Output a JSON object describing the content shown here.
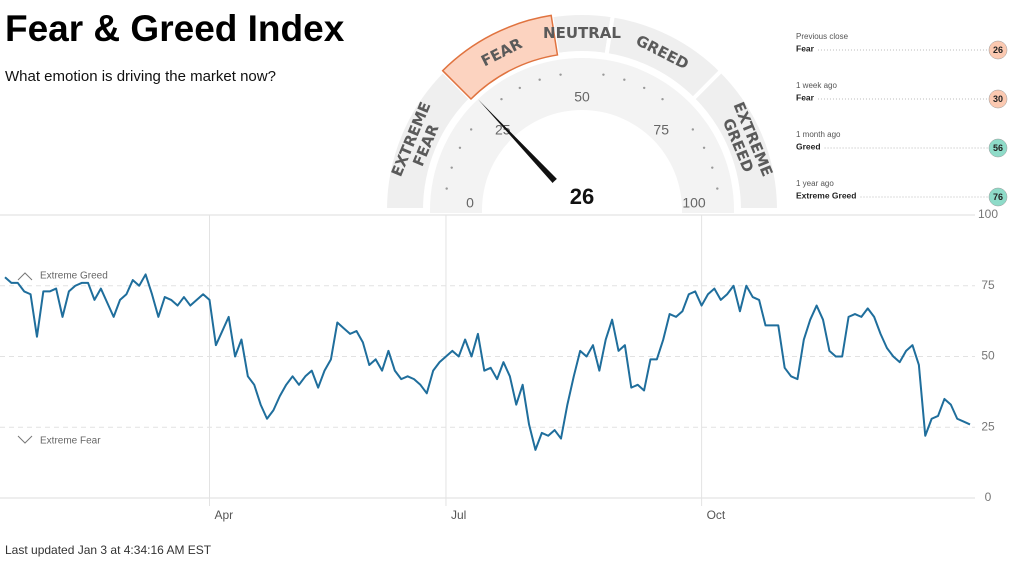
{
  "header": {
    "title": "Fear & Greed Index",
    "subtitle": "What emotion is driving the market now?"
  },
  "gauge": {
    "value": 26,
    "min": 0,
    "max": 100,
    "ticks": [
      0,
      25,
      50,
      75,
      100
    ],
    "segments": [
      {
        "lines": [
          "EXTREME",
          "FEAR"
        ],
        "from": 0,
        "to": 25
      },
      {
        "lines": [
          "FEAR"
        ],
        "from": 25,
        "to": 45
      },
      {
        "lines": [
          "NEUTRAL"
        ],
        "from": 45,
        "to": 55
      },
      {
        "lines": [
          "GREED"
        ],
        "from": 55,
        "to": 75
      },
      {
        "lines": [
          "EXTREME",
          "GREED"
        ],
        "from": 75,
        "to": 100
      }
    ]
  },
  "history": [
    {
      "label": "Previous close",
      "rating": "Fear",
      "value": 26,
      "color": "#fbc9b1"
    },
    {
      "label": "1 week ago",
      "rating": "Fear",
      "value": 30,
      "color": "#fbc9b1"
    },
    {
      "label": "1 month ago",
      "rating": "Greed",
      "value": 56,
      "color": "#8edbc8"
    },
    {
      "label": "1 year ago",
      "rating": "Extreme Greed",
      "value": 76,
      "color": "#8edbc8"
    }
  ],
  "chart_data": {
    "type": "line",
    "color": "#1f6e9c",
    "annotations": [
      "Extreme Greed",
      "Extreme Fear"
    ],
    "values": [
      78,
      76,
      76,
      73,
      72,
      57,
      73,
      73,
      74,
      64,
      73,
      75,
      76,
      76,
      70,
      74,
      69,
      64,
      70,
      72,
      77,
      75,
      79,
      72,
      64,
      71,
      70,
      68,
      71,
      68,
      70,
      72,
      70,
      54,
      59,
      64,
      50,
      56,
      43,
      40,
      33,
      28,
      31,
      36,
      40,
      43,
      40,
      43,
      45,
      39,
      45,
      49,
      62,
      60,
      58,
      59,
      55,
      47,
      49,
      45,
      52,
      45,
      42,
      43,
      42,
      40,
      37,
      45,
      48,
      50,
      52,
      50,
      56,
      50,
      58,
      45,
      46,
      42,
      48,
      43,
      33,
      40,
      26,
      17,
      23,
      22,
      24,
      21,
      33,
      43,
      52,
      50,
      54,
      45,
      56,
      63,
      52,
      54,
      39,
      40,
      38,
      49,
      49,
      56,
      65,
      64,
      66,
      72,
      73,
      68,
      72,
      74,
      70,
      72,
      75,
      66,
      75,
      71,
      70,
      61,
      61,
      61,
      46,
      43,
      42,
      56,
      63,
      68,
      63,
      52,
      50,
      50,
      64,
      65,
      64,
      67,
      64,
      58,
      53,
      50,
      48,
      52,
      54,
      47,
      22,
      28,
      29,
      35,
      33,
      28,
      27,
      26
    ],
    "xlim": [
      0,
      151
    ],
    "xticks": [
      {
        "value": 32,
        "label": "Apr"
      },
      {
        "value": 69,
        "label": "Jul"
      },
      {
        "value": 109,
        "label": "Oct"
      }
    ],
    "ylim": [
      0,
      100
    ],
    "yticks": [
      0,
      25,
      50,
      75,
      100
    ],
    "grid": true
  },
  "footer": {
    "updated": "Last updated Jan 3 at 4:34:16 AM EST"
  }
}
